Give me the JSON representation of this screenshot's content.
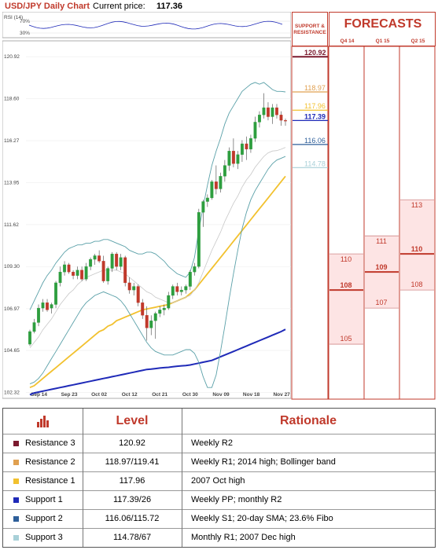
{
  "header": {
    "title": "USD/JPY Daily Chart",
    "price_label": "Current price:",
    "price_value": "117.36"
  },
  "rsi": {
    "label": "RSI (14)",
    "ticks": [
      "70%",
      "30%"
    ]
  },
  "panel": {
    "sr_title_line1": "SUPPORT &",
    "sr_title_line2": "RESISTANCE",
    "forecasts_title": "FORECASTS",
    "quarters": [
      "Q4 14",
      "Q1 15",
      "Q2 15"
    ]
  },
  "chart_data": {
    "type": "candlestick",
    "ylim": [
      102.0,
      121.8
    ],
    "y_ticks": [
      120.92,
      118.6,
      116.27,
      113.95,
      111.62,
      109.3,
      106.97,
      104.65,
      102.32
    ],
    "y_tick_labels": [
      "120.92",
      "118.60",
      "116.27",
      "113.95",
      "111.62",
      "109.30",
      "106.97",
      "104.65",
      "102.32"
    ],
    "x_labels": [
      "Sep 14",
      "Sep 23",
      "Oct 02",
      "Oct 12",
      "Oct 21",
      "Oct 30",
      "Nov 09",
      "Nov 18",
      "Nov 27"
    ],
    "x_label_positions": [
      2,
      9,
      16,
      23,
      30,
      37,
      44,
      51,
      58
    ],
    "n": 60,
    "candles": [
      [
        105.0,
        105.8,
        104.9,
        105.7
      ],
      [
        105.7,
        106.4,
        105.6,
        106.2
      ],
      [
        106.2,
        107.2,
        106.0,
        107.0
      ],
      [
        107.0,
        107.5,
        106.8,
        107.3
      ],
      [
        107.3,
        107.5,
        106.8,
        106.9
      ],
      [
        107.0,
        107.3,
        106.7,
        107.2
      ],
      [
        107.2,
        108.5,
        107.0,
        108.4
      ],
      [
        108.4,
        109.3,
        108.2,
        109.0
      ],
      [
        109.0,
        109.6,
        108.8,
        109.4
      ],
      [
        109.4,
        109.5,
        108.9,
        109.0
      ],
      [
        109.0,
        109.1,
        108.6,
        108.8
      ],
      [
        108.8,
        109.3,
        108.6,
        109.1
      ],
      [
        109.1,
        109.3,
        108.5,
        108.6
      ],
      [
        108.6,
        109.5,
        108.5,
        109.3
      ],
      [
        109.3,
        109.8,
        109.1,
        109.7
      ],
      [
        109.7,
        110.0,
        109.4,
        109.9
      ],
      [
        109.9,
        110.2,
        109.5,
        109.6
      ],
      [
        109.6,
        109.9,
        108.4,
        108.5
      ],
      [
        108.5,
        109.3,
        108.3,
        109.2
      ],
      [
        109.2,
        110.1,
        109.0,
        110.0
      ],
      [
        110.0,
        110.1,
        109.1,
        109.3
      ],
      [
        109.3,
        110.0,
        109.1,
        109.8
      ],
      [
        109.8,
        109.9,
        108.2,
        108.4
      ],
      [
        108.4,
        108.7,
        107.8,
        108.0
      ],
      [
        108.0,
        108.4,
        107.7,
        108.2
      ],
      [
        108.2,
        108.3,
        107.1,
        107.3
      ],
      [
        107.3,
        107.5,
        106.4,
        106.6
      ],
      [
        106.6,
        107.1,
        105.2,
        105.9
      ],
      [
        105.9,
        106.6,
        105.5,
        106.3
      ],
      [
        106.3,
        106.8,
        105.3,
        106.7
      ],
      [
        106.7,
        107.1,
        106.5,
        106.9
      ],
      [
        106.9,
        107.2,
        106.6,
        107.0
      ],
      [
        107.0,
        107.9,
        106.9,
        107.7
      ],
      [
        107.7,
        108.3,
        107.5,
        108.2
      ],
      [
        108.2,
        108.4,
        107.7,
        107.9
      ],
      [
        107.9,
        108.2,
        107.7,
        108.0
      ],
      [
        108.0,
        108.3,
        107.8,
        108.2
      ],
      [
        108.2,
        109.1,
        108.0,
        109.0
      ],
      [
        109.0,
        109.5,
        108.8,
        109.3
      ],
      [
        109.3,
        112.5,
        109.2,
        112.3
      ],
      [
        112.3,
        113.0,
        111.5,
        112.9
      ],
      [
        112.9,
        113.3,
        112.6,
        113.1
      ],
      [
        113.1,
        114.1,
        113.0,
        114.0
      ],
      [
        114.0,
        114.9,
        113.3,
        113.6
      ],
      [
        113.6,
        114.5,
        113.4,
        114.3
      ],
      [
        114.3,
        115.2,
        114.0,
        114.9
      ],
      [
        114.9,
        115.9,
        114.6,
        115.7
      ],
      [
        115.7,
        116.4,
        114.8,
        115.0
      ],
      [
        115.0,
        115.7,
        114.7,
        115.5
      ],
      [
        115.5,
        116.3,
        115.1,
        116.1
      ],
      [
        116.1,
        116.5,
        115.2,
        115.8
      ],
      [
        115.8,
        116.6,
        115.6,
        116.4
      ],
      [
        116.4,
        117.6,
        116.2,
        117.3
      ],
      [
        117.3,
        117.9,
        117.0,
        117.7
      ],
      [
        117.7,
        118.9,
        117.5,
        118.1
      ],
      [
        118.1,
        118.4,
        117.4,
        117.6
      ],
      [
        117.6,
        118.3,
        117.2,
        118.1
      ],
      [
        118.1,
        118.3,
        117.5,
        117.7
      ],
      [
        117.7,
        117.9,
        117.1,
        117.4
      ],
      [
        117.4,
        117.5,
        117.1,
        117.36
      ]
    ],
    "bb_upper": [
      106.9,
      107.4,
      107.9,
      108.4,
      108.8,
      109.1,
      109.5,
      109.8,
      110.1,
      110.3,
      110.4,
      110.5,
      110.5,
      110.6,
      110.6,
      110.7,
      110.7,
      110.8,
      110.8,
      110.7,
      110.6,
      110.5,
      110.4,
      110.2,
      110.1,
      110.0,
      110.0,
      110.1,
      110.1,
      110.0,
      109.8,
      109.6,
      109.3,
      109.1,
      108.9,
      108.8,
      108.7,
      109.0,
      109.8,
      111.3,
      112.6,
      113.8,
      114.9,
      115.7,
      116.4,
      117.2,
      117.8,
      118.2,
      118.6,
      119.0,
      119.2,
      119.4,
      119.5,
      119.4,
      119.5,
      119.3,
      119.1,
      119.0,
      119.0,
      118.97
    ],
    "bb_lower": [
      102.8,
      102.9,
      103.1,
      103.4,
      103.8,
      104.2,
      104.6,
      105.0,
      105.4,
      105.8,
      106.2,
      106.6,
      107.0,
      107.3,
      107.5,
      107.7,
      107.8,
      107.9,
      107.8,
      107.7,
      107.6,
      107.4,
      107.1,
      106.7,
      106.3,
      105.9,
      105.5,
      105.1,
      104.8,
      104.6,
      104.5,
      104.4,
      104.4,
      104.4,
      104.5,
      104.6,
      104.7,
      104.7,
      104.5,
      104.0,
      103.2,
      102.6,
      102.6,
      103.3,
      104.6,
      106.0,
      107.5,
      108.9,
      110.2,
      111.4,
      112.3,
      113.0,
      113.5,
      113.9,
      114.3,
      114.7,
      115.0,
      115.2,
      115.3,
      115.4
    ],
    "sma20": [
      104.8,
      105.1,
      105.4,
      105.8,
      106.1,
      106.4,
      106.8,
      107.2,
      107.5,
      107.8,
      108.0,
      108.3,
      108.5,
      108.7,
      108.8,
      108.9,
      109.0,
      109.1,
      109.1,
      109.1,
      109.1,
      109.0,
      108.9,
      108.7,
      108.5,
      108.3,
      108.1,
      107.9,
      107.8,
      107.6,
      107.5,
      107.4,
      107.3,
      107.3,
      107.4,
      107.5,
      107.6,
      107.7,
      108.0,
      108.4,
      109.0,
      109.6,
      110.2,
      110.7,
      111.2,
      111.8,
      112.3,
      112.8,
      113.2,
      113.7,
      114.1,
      114.4,
      114.8,
      115.1,
      115.4,
      115.6,
      115.7,
      115.72,
      115.8,
      115.9
    ],
    "sma_yellow": [
      102.6,
      102.7,
      102.9,
      103.1,
      103.3,
      103.5,
      103.7,
      103.9,
      104.1,
      104.3,
      104.5,
      104.7,
      104.9,
      105.1,
      105.3,
      105.5,
      105.7,
      105.8,
      106.0,
      106.1,
      106.3,
      106.4,
      106.5,
      106.6,
      106.7,
      106.8,
      106.9,
      106.95,
      107.0,
      107.05,
      107.1,
      107.15,
      107.2,
      107.3,
      107.4,
      107.5,
      107.6,
      107.8,
      108.0,
      108.3,
      108.6,
      108.9,
      109.2,
      109.5,
      109.8,
      110.1,
      110.4,
      110.7,
      111.0,
      111.3,
      111.6,
      111.9,
      112.2,
      112.5,
      112.8,
      113.1,
      113.4,
      113.7,
      114.0,
      114.3
    ],
    "sma_blue": [
      102.2,
      102.3,
      102.35,
      102.4,
      102.45,
      102.5,
      102.55,
      102.6,
      102.65,
      102.7,
      102.75,
      102.8,
      102.85,
      102.9,
      102.95,
      103.0,
      103.05,
      103.1,
      103.15,
      103.2,
      103.25,
      103.3,
      103.35,
      103.4,
      103.45,
      103.5,
      103.55,
      103.6,
      103.62,
      103.65,
      103.68,
      103.7,
      103.72,
      103.75,
      103.78,
      103.8,
      103.82,
      103.85,
      103.9,
      103.95,
      104.0,
      104.05,
      104.1,
      104.2,
      104.3,
      104.4,
      104.5,
      104.6,
      104.7,
      104.8,
      104.9,
      105.0,
      105.1,
      105.2,
      105.3,
      105.4,
      105.5,
      105.6,
      105.7,
      105.82
    ],
    "sr_levels": [
      {
        "value": 120.92,
        "label": "120.92",
        "color": "#7b1a2e"
      },
      {
        "value": 118.97,
        "label": "118.97",
        "color": "#e0a050"
      },
      {
        "value": 117.96,
        "label": "117.96",
        "color": "#f2c12e"
      },
      {
        "value": 117.39,
        "label": "117.39",
        "color": "#1f2ab8"
      },
      {
        "value": 116.06,
        "label": "116.06",
        "color": "#2e5f9a"
      },
      {
        "value": 114.78,
        "label": "114.78",
        "color": "#a8d0d8"
      }
    ],
    "forecasts": [
      {
        "quarter": "Q4 14",
        "high": 110,
        "median": 108,
        "low": 105
      },
      {
        "quarter": "Q1 15",
        "high": 111,
        "median": 109,
        "low": 107
      },
      {
        "quarter": "Q2 15",
        "high": 113,
        "median": 110,
        "low": 108
      }
    ],
    "colors": {
      "up": "#2e9e3f",
      "down": "#c0392b",
      "bb": "#5aa0a8",
      "sma20": "#c8c8c8",
      "yellow": "#f2c12e",
      "blue": "#1f2ab8",
      "accent": "#c0392b"
    }
  },
  "table": {
    "col_level": "Level",
    "col_rationale": "Rationale",
    "rows": [
      {
        "name": "Resistance 3",
        "level": "120.92",
        "rationale": "Weekly R2",
        "color": "#7b1a2e"
      },
      {
        "name": "Resistance 2",
        "level": "118.97/119.41",
        "rationale": "Weekly R1; 2014 high; Bollinger band",
        "color": "#e0a050"
      },
      {
        "name": "Resistance 1",
        "level": "117.96",
        "rationale": "2007 Oct high",
        "color": "#f2c12e"
      },
      {
        "name": "Support 1",
        "level": "117.39/26",
        "rationale": "Weekly PP; monthly R2",
        "color": "#1f2ab8"
      },
      {
        "name": "Support 2",
        "level": "116.06/115.72",
        "rationale": "Weekly S1; 20-day SMA; 23.6% Fibo",
        "color": "#2e5f9a"
      },
      {
        "name": "Support 3",
        "level": "114.78/67",
        "rationale": "Monthly R1; 2007 Dec high",
        "color": "#a8d0d8"
      }
    ]
  }
}
